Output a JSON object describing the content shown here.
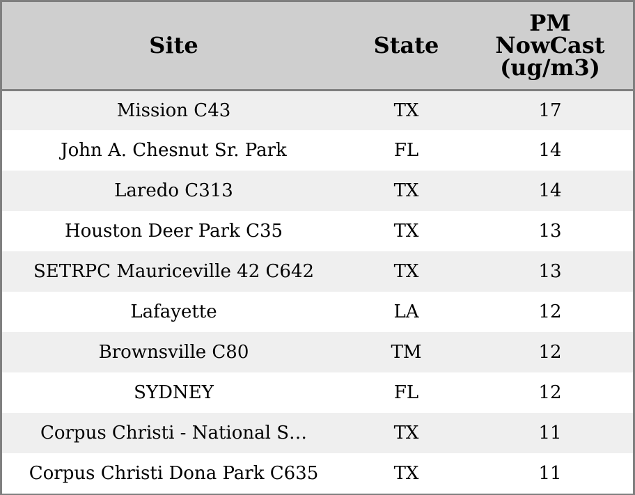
{
  "chart_data": {
    "type": "table",
    "columns": [
      "Site",
      "State",
      "PM NowCast (ug/m3)"
    ],
    "rows": [
      {
        "site": "Mission C43",
        "state": "TX",
        "pm": "17"
      },
      {
        "site": "John A. Chesnut Sr. Park",
        "state": "FL",
        "pm": "14"
      },
      {
        "site": "Laredo C313",
        "state": "TX",
        "pm": "14"
      },
      {
        "site": "Houston Deer Park C35",
        "state": "TX",
        "pm": "13"
      },
      {
        "site": "SETRPC Mauriceville 42 C642",
        "state": "TX",
        "pm": "13"
      },
      {
        "site": "Lafayette",
        "state": "LA",
        "pm": "12"
      },
      {
        "site": "Brownsville C80",
        "state": "TM",
        "pm": "12"
      },
      {
        "site": "SYDNEY",
        "state": "FL",
        "pm": "12"
      },
      {
        "site": "Corpus Christi - National S…",
        "state": "TX",
        "pm": "11"
      },
      {
        "site": "Corpus Christi Dona Park C635",
        "state": "TX",
        "pm": "11"
      }
    ]
  },
  "colors": {
    "header_bg": "#cfcfcf",
    "row_odd_bg": "#efefef",
    "row_even_bg": "#ffffff",
    "border": "#7f7f7f"
  }
}
